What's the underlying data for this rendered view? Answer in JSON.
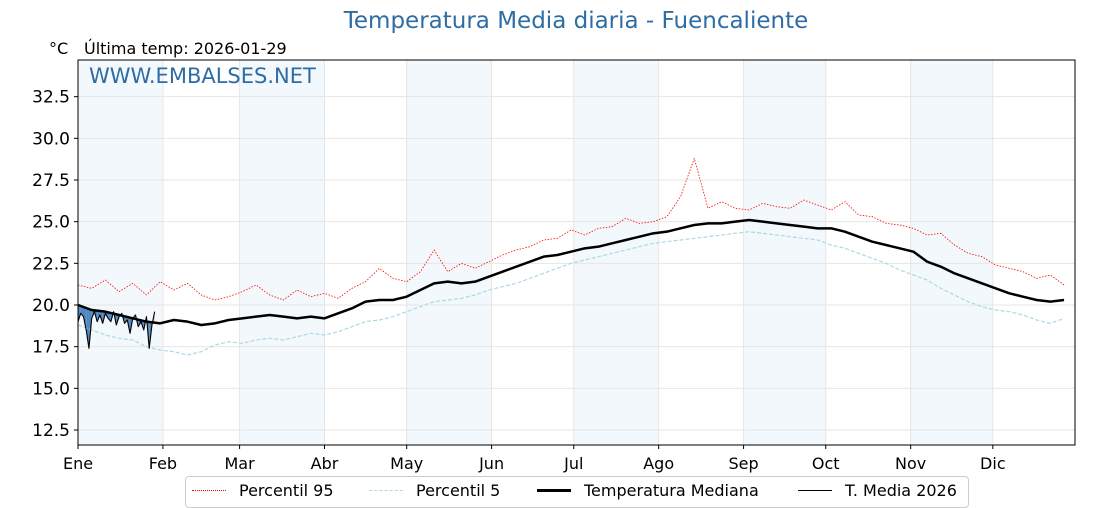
{
  "title": "Temperatura Media diaria - Fuencaliente",
  "unit_label": "°C",
  "last_temp_label": "Última temp: 2026-01-29",
  "watermark": "WWW.EMBALSES.NET",
  "colors": {
    "title": "#2e6da4",
    "p95": "#ff0000",
    "p5": "#add8e6",
    "median": "#000000",
    "current": "#000000",
    "below_fill": "#4f88c0",
    "above_fill": "#f4b6b6",
    "band": "#f3f8fc"
  },
  "chart_data": {
    "type": "line",
    "title": "Temperatura Media diaria - Fuencaliente",
    "xlabel": "",
    "ylabel": "°C",
    "xlim": [
      0,
      364
    ],
    "ylim": [
      11.6,
      34.7
    ],
    "yticks": [
      12.5,
      15.0,
      17.5,
      20.0,
      22.5,
      25.0,
      27.5,
      30.0,
      32.5
    ],
    "ytick_labels": [
      "12.5",
      "15.0",
      "17.5",
      "20.0",
      "22.5",
      "25.0",
      "27.5",
      "30.0",
      "32.5"
    ],
    "month_days": [
      0,
      31,
      59,
      90,
      120,
      151,
      181,
      212,
      243,
      273,
      304,
      334
    ],
    "month_labels": [
      "Ene",
      "Feb",
      "Mar",
      "Abr",
      "May",
      "Jun",
      "Jul",
      "Ago",
      "Sep",
      "Oct",
      "Nov",
      "Dic"
    ],
    "grid": true,
    "legend_position": "bottom-center",
    "x_step_days": 5,
    "series": [
      {
        "name": "Percentil 95",
        "style": "dotted",
        "values": [
          21.2,
          21.0,
          21.5,
          20.8,
          21.3,
          20.6,
          21.4,
          20.9,
          21.3,
          20.6,
          20.3,
          20.5,
          20.8,
          21.2,
          20.6,
          20.3,
          20.9,
          20.5,
          20.7,
          20.4,
          21.0,
          21.4,
          22.2,
          21.6,
          21.4,
          22.0,
          23.3,
          22.0,
          22.5,
          22.2,
          22.6,
          23.0,
          23.3,
          23.5,
          23.9,
          24.0,
          24.5,
          24.2,
          24.6,
          24.7,
          25.2,
          24.9,
          25.0,
          25.3,
          26.5,
          28.8,
          25.8,
          26.2,
          25.8,
          25.7,
          26.1,
          25.9,
          25.8,
          26.3,
          26.0,
          25.7,
          26.2,
          25.4,
          25.3,
          24.9,
          24.8,
          24.6,
          24.2,
          24.3,
          23.6,
          23.1,
          22.9,
          22.4,
          22.2,
          22.0,
          21.6,
          21.8,
          21.2
        ]
      },
      {
        "name": "Percentil 5",
        "style": "dashed",
        "values": [
          18.8,
          18.5,
          18.2,
          18.0,
          17.9,
          17.5,
          17.3,
          17.2,
          17.0,
          17.2,
          17.6,
          17.8,
          17.7,
          17.9,
          18.0,
          17.9,
          18.1,
          18.3,
          18.2,
          18.4,
          18.7,
          19.0,
          19.1,
          19.3,
          19.6,
          19.9,
          20.2,
          20.3,
          20.4,
          20.6,
          20.9,
          21.1,
          21.3,
          21.6,
          21.9,
          22.2,
          22.5,
          22.7,
          22.9,
          23.1,
          23.3,
          23.5,
          23.7,
          23.8,
          23.9,
          24.0,
          24.1,
          24.2,
          24.3,
          24.4,
          24.3,
          24.2,
          24.1,
          24.0,
          23.9,
          23.6,
          23.4,
          23.1,
          22.8,
          22.5,
          22.1,
          21.8,
          21.5,
          21.0,
          20.6,
          20.2,
          19.9,
          19.7,
          19.6,
          19.4,
          19.1,
          18.9,
          19.2
        ]
      },
      {
        "name": "Temperatura Mediana",
        "style": "thick",
        "values": [
          20.0,
          19.7,
          19.6,
          19.4,
          19.2,
          19.0,
          18.9,
          19.1,
          19.0,
          18.8,
          18.9,
          19.1,
          19.2,
          19.3,
          19.4,
          19.3,
          19.2,
          19.3,
          19.2,
          19.5,
          19.8,
          20.2,
          20.3,
          20.3,
          20.5,
          20.9,
          21.3,
          21.4,
          21.3,
          21.4,
          21.7,
          22.0,
          22.3,
          22.6,
          22.9,
          23.0,
          23.2,
          23.4,
          23.5,
          23.7,
          23.9,
          24.1,
          24.3,
          24.4,
          24.6,
          24.8,
          24.9,
          24.9,
          25.0,
          25.1,
          25.0,
          24.9,
          24.8,
          24.7,
          24.6,
          24.6,
          24.4,
          24.1,
          23.8,
          23.6,
          23.4,
          23.2,
          22.6,
          22.3,
          21.9,
          21.6,
          21.3,
          21.0,
          20.7,
          20.5,
          20.3,
          20.2,
          20.3
        ]
      },
      {
        "name": "T. Media 2026",
        "style": "thin",
        "x_step_days": 1,
        "values": [
          19.0,
          19.5,
          19.3,
          18.5,
          17.4,
          19.2,
          19.6,
          19.0,
          19.4,
          18.9,
          19.5,
          19.2,
          19.0,
          19.6,
          18.8,
          19.3,
          19.5,
          18.9,
          19.1,
          18.3,
          19.2,
          19.4,
          18.7,
          19.0,
          18.5,
          19.3,
          17.4,
          18.8,
          19.6
        ]
      }
    ]
  }
}
